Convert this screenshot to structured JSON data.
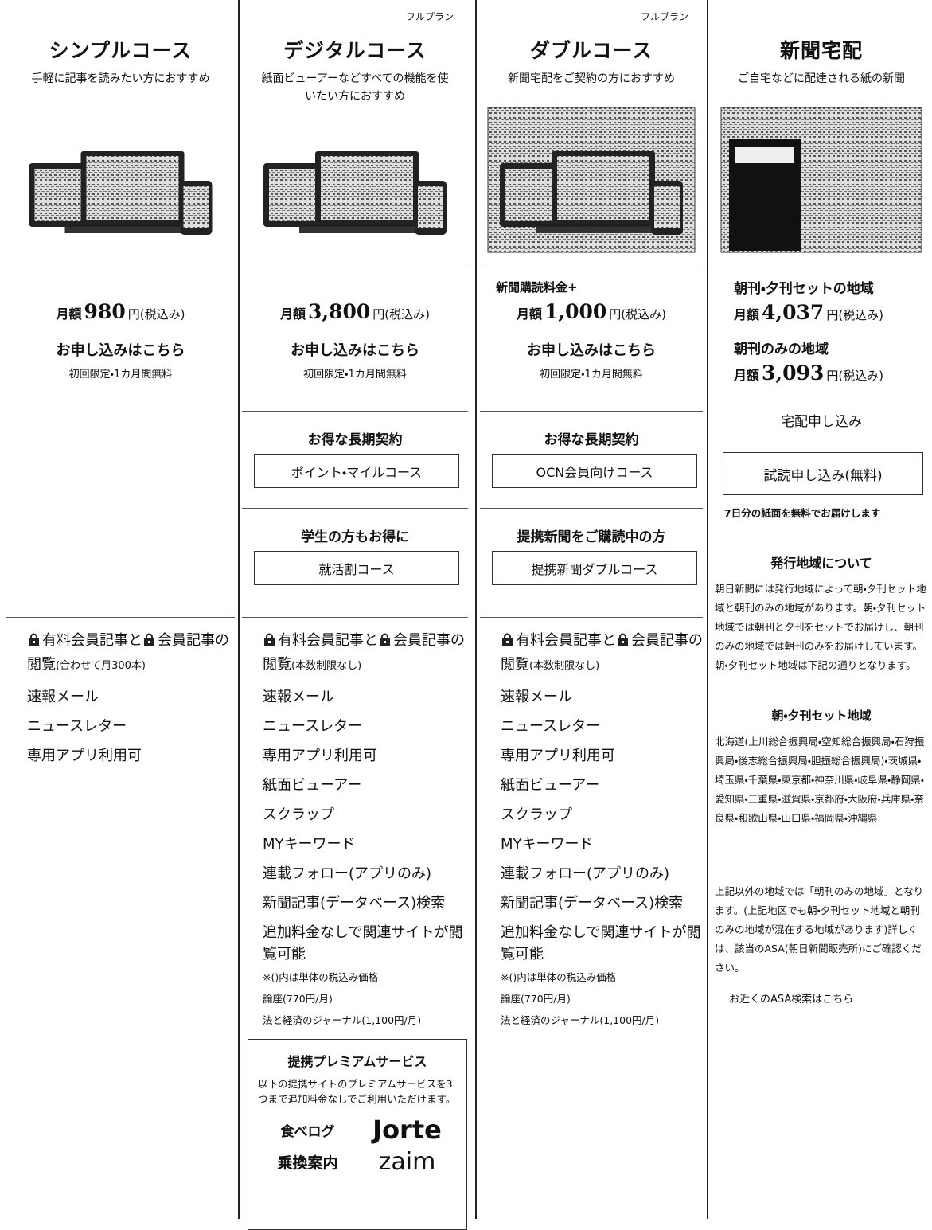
{
  "columns": [
    {
      "title": "シンプルコース",
      "subtitle": "手軽に記事を読みたい方におすすめ",
      "price": {
        "label": "月額",
        "amount": "980",
        "unit": "円(税込み)"
      },
      "apply": "お申し込みはこちら",
      "apply_note": "初回限定・1カ月間無料",
      "features": {
        "lead": [
          "有料会員記事と",
          "会員記事の閲覧"
        ],
        "limit": "(合わせて月300本)",
        "items": [
          "速報メール",
          "ニュースレター",
          "専用アプリ利用可"
        ]
      }
    },
    {
      "badge": "フルプラン",
      "title": "デジタルコース",
      "subtitle": "紙面ビューアーなどすべての機能を使いたい方におすすめ",
      "price": {
        "label": "月額",
        "amount": "3,800",
        "unit": "円(税込み)"
      },
      "apply": "お申し込みはこちら",
      "apply_note": "初回限定・1カ月間無料",
      "offers": [
        {
          "heading": "お得な長期契約",
          "button": "ポイント・マイルコース"
        },
        {
          "heading": "学生の方もお得に",
          "button": "就活割コース"
        }
      ],
      "features": {
        "lead": [
          "有料会員記事と",
          "会員記事の閲覧"
        ],
        "limit": "(本数制限なし)",
        "items": [
          "速報メール",
          "ニュースレター",
          "専用アプリ利用可",
          "紙面ビューアー",
          "スクラップ",
          "MYキーワード",
          "連載フォロー(アプリのみ)",
          "新聞記事(データベース)検索",
          "追加料金なしで関連サイトが閲覧可能"
        ],
        "notes": [
          "※()内は単体の税込み価格",
          "論座(770円/月)",
          "法と経済のジャーナル(1,100円/月)"
        ]
      },
      "premium": {
        "title": "提携プレミアムサービス",
        "description": "以下の提携サイトのプレミアムサービスを3つまで追加料金なしでご利用いただけます。",
        "logos": [
          "食べログ",
          "Jorte",
          "乗換案内",
          "zaim"
        ]
      }
    },
    {
      "badge": "フルプラン",
      "title": "ダブルコース",
      "subtitle": "新聞宅配をご契約の方におすすめ",
      "price": {
        "prefix": "新聞購読料金+",
        "label": "月額",
        "amount": "1,000",
        "unit": "円(税込み)"
      },
      "apply": "お申し込みはこちら",
      "apply_note": "初回限定・1カ月間無料",
      "offers": [
        {
          "heading": "お得な長期契約",
          "button": "OCN会員向けコース"
        },
        {
          "heading": "提携新聞をご購読中の方",
          "button": "提携新聞ダブルコース"
        }
      ],
      "features": {
        "lead": [
          "有料会員記事と",
          "会員記事の閲覧"
        ],
        "limit": "(本数制限なし)",
        "items": [
          "速報メール",
          "ニュースレター",
          "専用アプリ利用可",
          "紙面ビューアー",
          "スクラップ",
          "MYキーワード",
          "連載フォロー(アプリのみ)",
          "新聞記事(データベース)検索",
          "追加料金なしで関連サイトが閲覧可能"
        ],
        "notes": [
          "※()内は単体の税込み価格",
          "論座(770円/月)",
          "法と経済のジャーナル(1,100円/月)"
        ]
      }
    },
    {
      "title": "新聞宅配",
      "subtitle": "ご自宅などに配達される紙の新聞",
      "plans": [
        {
          "region": "朝刊・夕刊セットの地域",
          "price": {
            "label": "月額",
            "amount": "4,037",
            "unit": "円(税込み)"
          }
        },
        {
          "region": "朝刊のみの地域",
          "price": {
            "label": "月額",
            "amount": "3,093",
            "unit": "円(税込み)"
          }
        }
      ],
      "apply": "宅配申し込み",
      "trial_button": "試読申し込み(無料)",
      "trial_note": "7日分の紙面を無料でお届けします",
      "area_heading": "発行地域について",
      "area_text": "朝日新聞には発行地域によって朝・夕刊セット地域と朝刊のみの地域があります。朝・夕刊セット地域では朝刊と夕刊をセットでお届けし、朝刊のみの地域では朝刊のみをお届けしています。朝・夕刊セット地域は下記の通りとなります。",
      "set_heading": "朝・夕刊セット地域",
      "set_text": "北海道(上川総合振興局・空知総合振興局・石狩振興局・後志総合振興局・胆振総合振興局)・茨城県・埼玉県・千葉県・東京都・神奈川県・岐阜県・静岡県・愛知県・三重県・滋賀県・京都府・大阪府・兵庫県・奈良県・和歌山県・山口県・福岡県・沖縄県",
      "other_text": "上記以外の地域では「朝刊のみの地域」となります。(上記地区でも朝・夕刊セット地域と朝刊のみの地域が混在する地域があります)詳しくは、該当のASA(朝日新聞販売所)にご確認ください。",
      "asa_link": "お近くのASA検索はこちら"
    }
  ]
}
